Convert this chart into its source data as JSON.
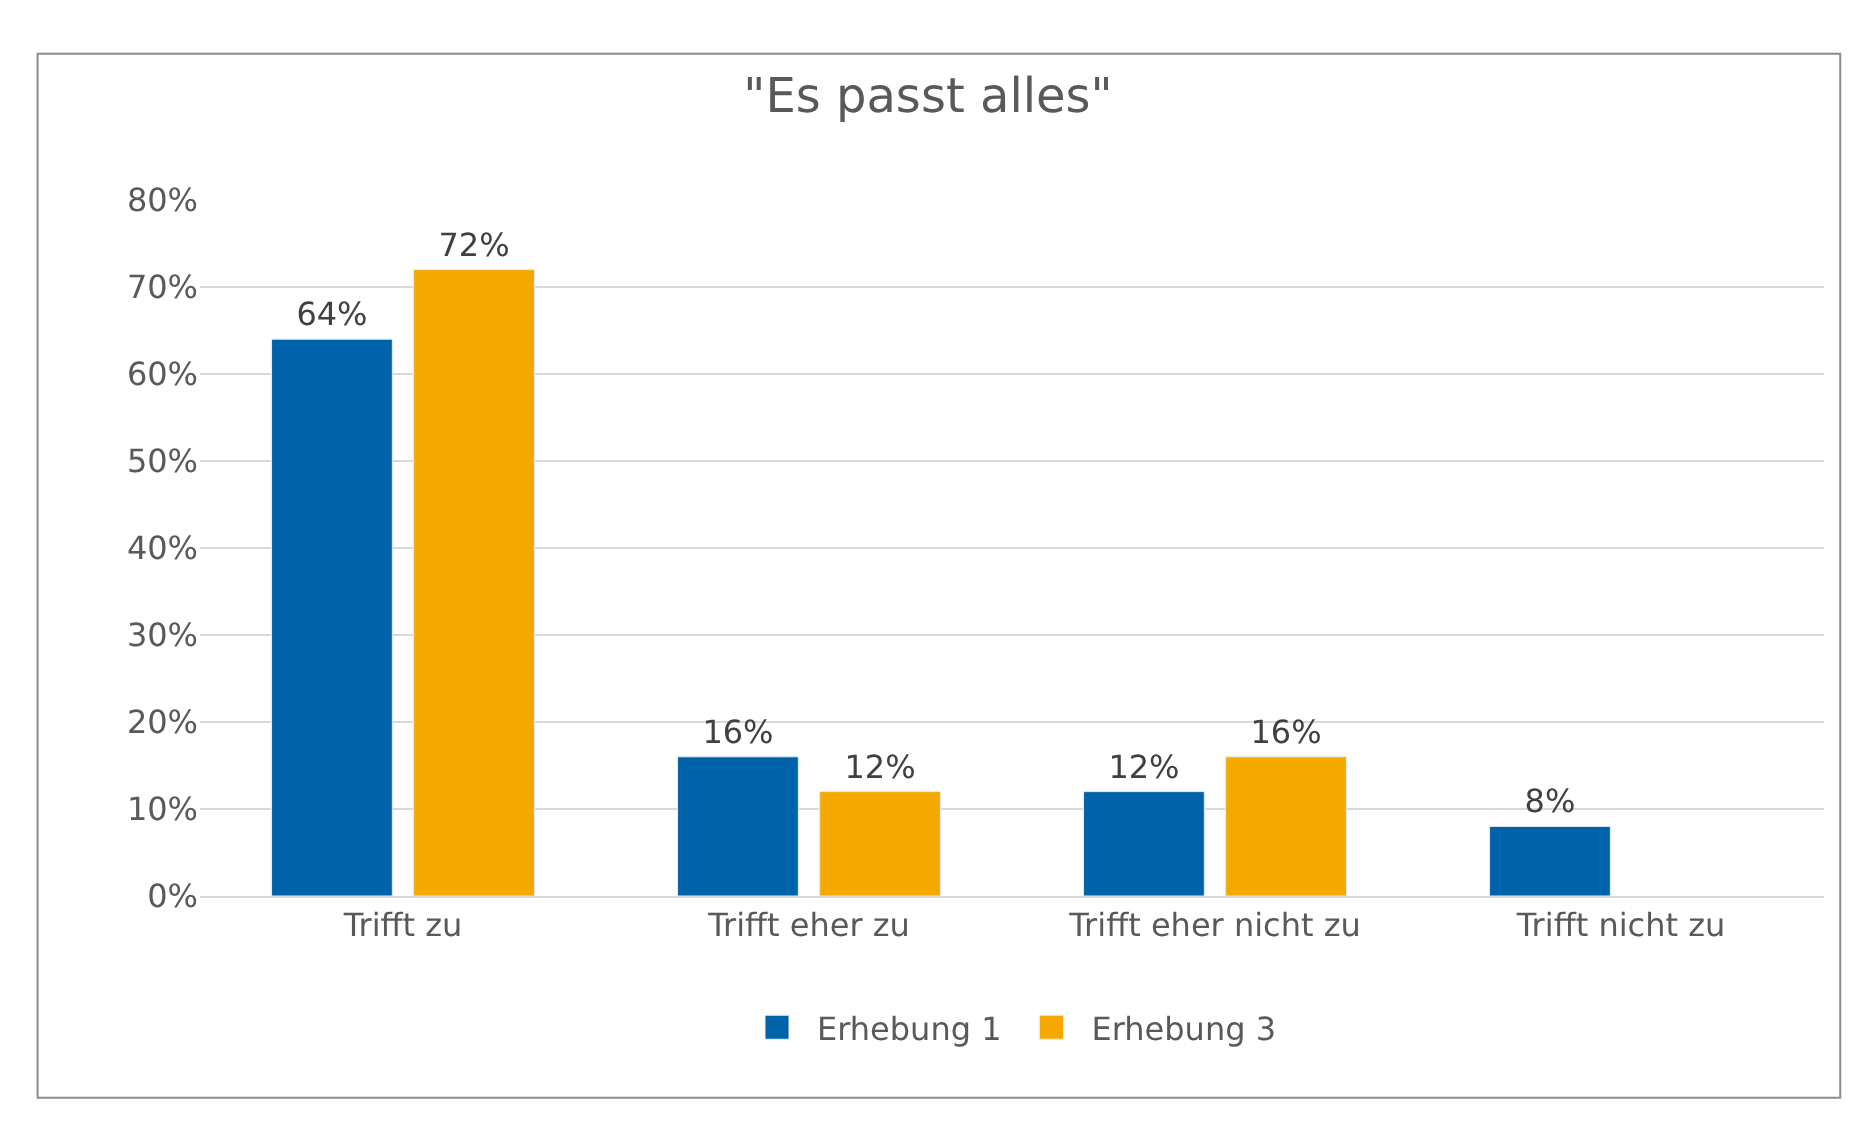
{
  "chart_data": {
    "type": "bar",
    "title": "\"Es passt alles\"",
    "categories": [
      "Trifft zu",
      "Trifft eher zu",
      "Trifft eher nicht zu",
      "Trifft nicht zu"
    ],
    "series": [
      {
        "name": "Erhebung 1",
        "color": "#0062a8",
        "values": [
          64,
          16,
          12,
          8
        ],
        "value_labels": [
          "64%",
          "16%",
          "12%",
          "8%"
        ]
      },
      {
        "name": "Erhebung 3",
        "color": "#f5a800",
        "values": [
          72,
          12,
          16,
          null
        ],
        "value_labels": [
          "72%",
          "12%",
          "16%",
          null
        ]
      }
    ],
    "ylim": [
      0,
      80
    ],
    "yticks": [
      {
        "value": 0,
        "label": "0%"
      },
      {
        "value": 10,
        "label": "10%"
      },
      {
        "value": 20,
        "label": "20%"
      },
      {
        "value": 30,
        "label": "30%"
      },
      {
        "value": 40,
        "label": "40%"
      },
      {
        "value": 50,
        "label": "50%"
      },
      {
        "value": 60,
        "label": "60%"
      },
      {
        "value": 70,
        "label": "70%"
      },
      {
        "value": 80,
        "label": "80%"
      }
    ],
    "grid": "y",
    "legend": "bottom"
  }
}
